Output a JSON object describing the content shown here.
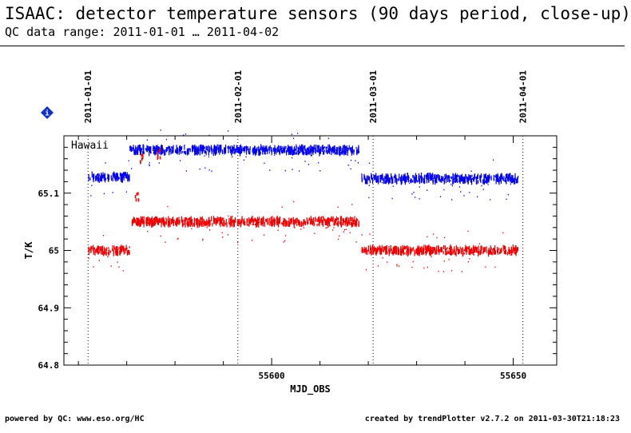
{
  "header": {
    "title": "ISAAC: detector temperature sensors (90 days period, close-up)",
    "subtitle": "QC data range: 2011-01-01 … 2011-04-02"
  },
  "footer": {
    "left": "powered by QC: www.eso.org/HC",
    "right": "created by trendPlotter v2.7.2 on 2011-03-30T21:18:23"
  },
  "icons": {
    "info": "info-diamond-icon"
  },
  "colors": {
    "series_upper": "#0000ee",
    "series_lower": "#ee0000"
  },
  "chart_data": {
    "type": "scatter",
    "xlabel": "MJD_OBS",
    "ylabel": "T/K",
    "xlim": [
      55557,
      55659
    ],
    "ylim": [
      64.8,
      65.2
    ],
    "xticks": [
      55600,
      55650
    ],
    "yticks": [
      64.8,
      64.9,
      65,
      65.1
    ],
    "annotation": "Hawaii",
    "date_markers": [
      {
        "label": "2011-01-01",
        "mjd": 55562
      },
      {
        "label": "2011-02-01",
        "mjd": 55593
      },
      {
        "label": "2011-03-01",
        "mjd": 55621
      },
      {
        "label": "2011-04-01",
        "mjd": 55652
      }
    ],
    "series": [
      {
        "color": "#0000ee",
        "segments": [
          {
            "x": [
              55562,
              55570.5
            ],
            "y": 65.128
          },
          {
            "x": [
              55570.5,
              55618
            ],
            "y": 65.175
          },
          {
            "x": [
              55618.5,
              55651
            ],
            "y": 65.125
          }
        ]
      },
      {
        "color": "#ee0000",
        "segments": [
          {
            "x": [
              55562,
              55570.5
            ],
            "y": 65.0
          },
          {
            "x": [
              55571,
              55618
            ],
            "y": 65.05
          },
          {
            "x": [
              55618.5,
              55651
            ],
            "y": 65.0
          }
        ],
        "extra_points": [
          {
            "x": 55572,
            "y": 65.1
          },
          {
            "x": 55573,
            "y": 65.165
          },
          {
            "x": 55576.5,
            "y": 65.17
          }
        ]
      }
    ]
  }
}
